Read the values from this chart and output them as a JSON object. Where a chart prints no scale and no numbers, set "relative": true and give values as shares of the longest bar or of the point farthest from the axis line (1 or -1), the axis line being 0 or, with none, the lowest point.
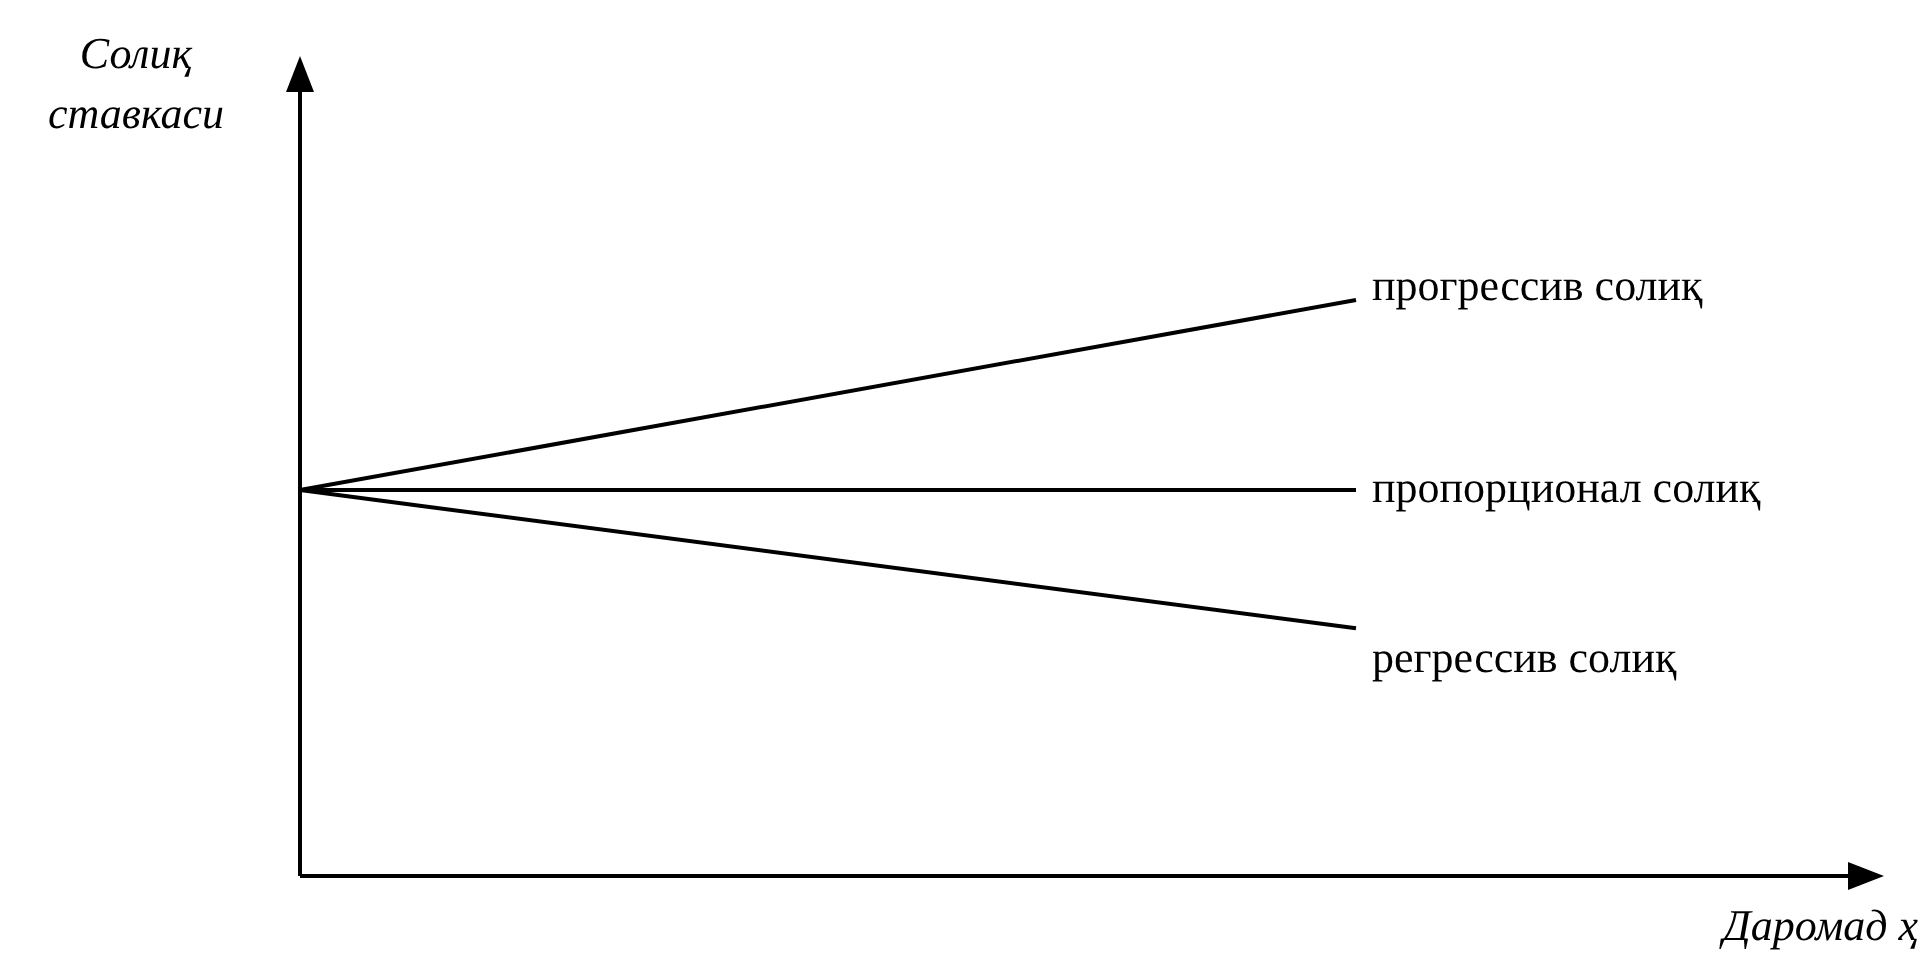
{
  "chart_data": {
    "type": "line",
    "relative": true,
    "ylabel": "Солиқ ставкаси",
    "xlabel": "Даромад ҳ",
    "categories": [
      null,
      null
    ],
    "legend": false,
    "marker": "none",
    "series": [
      {
        "name": "прогрессив солиқ",
        "color": "#000000",
        "values": [
          0.67,
          1
        ]
      },
      {
        "name": "пропорционал солиқ",
        "color": "#000000",
        "values": [
          0.67,
          0.67
        ]
      },
      {
        "name": "регрессив солиқ",
        "color": "#000000",
        "values": [
          0.67,
          0.43
        ]
      }
    ]
  }
}
